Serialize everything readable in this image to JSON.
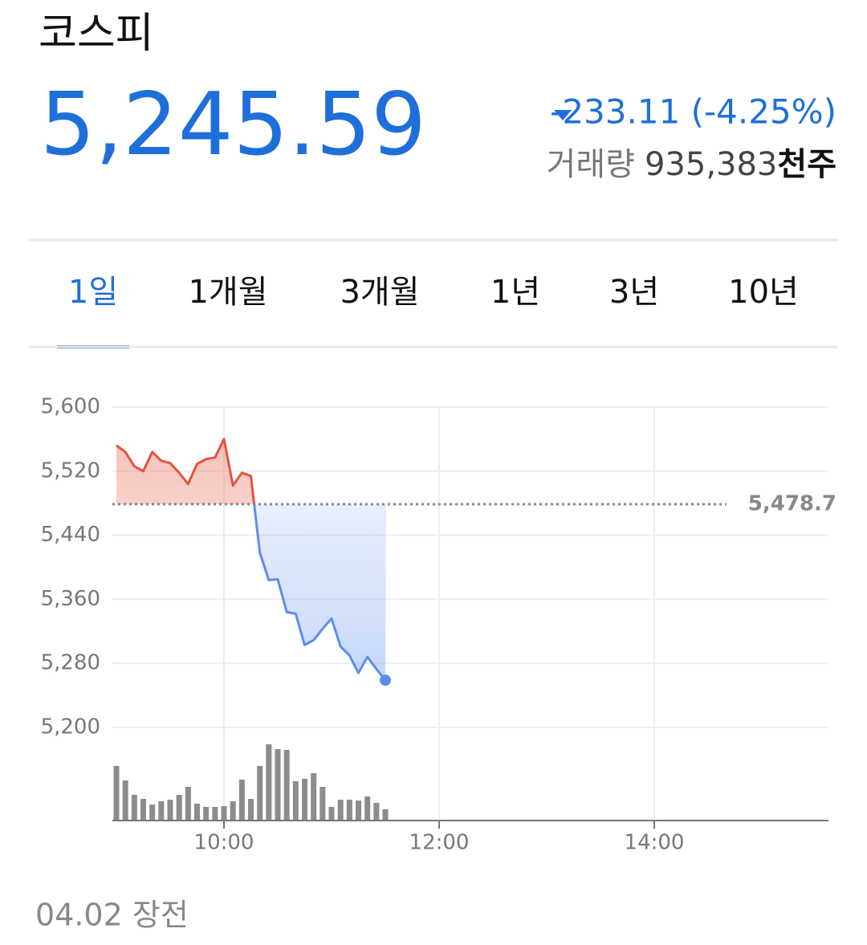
{
  "header": {
    "title": "코스피",
    "price": "5,245.59",
    "change": "-233.11 (-4.25%)",
    "volume_label": "거래량",
    "volume": "935,383",
    "volume_unit": "천주"
  },
  "tabs": {
    "items": [
      "1일",
      "1개월",
      "3개월",
      "1년",
      "3년",
      "10년"
    ],
    "selected": 0
  },
  "chart_data": {
    "type": "line",
    "x": [
      540,
      545,
      550,
      555,
      560,
      565,
      570,
      575,
      580,
      585,
      590,
      595,
      600,
      605,
      610,
      615,
      620,
      625,
      630,
      635,
      640,
      645,
      650,
      655,
      660,
      665,
      670,
      675,
      680,
      685,
      690
    ],
    "values": [
      5552,
      5544,
      5526,
      5520,
      5544,
      5533,
      5530,
      5518,
      5504,
      5529,
      5535,
      5537,
      5560,
      5502,
      5518,
      5514,
      5418,
      5384,
      5385,
      5344,
      5342,
      5303,
      5309,
      5323,
      5336,
      5301,
      5290,
      5268,
      5288,
      5273,
      5259
    ],
    "volume": [
      68,
      50,
      32,
      27,
      20,
      24,
      26,
      32,
      42,
      21,
      17,
      17,
      18,
      24,
      51,
      27,
      68,
      95,
      89,
      88,
      49,
      52,
      59,
      42,
      17,
      26,
      26,
      25,
      30,
      22,
      14
    ],
    "baseline": 5478.7,
    "baseline_label": "5,478.7",
    "up_color": "#e5533d",
    "down_color": "#5b8def",
    "volume_color": "#8c8c8c",
    "xlim": [
      540,
      930
    ],
    "xticks": [
      {
        "value": 600,
        "label": "10:00"
      },
      {
        "value": 720,
        "label": "12:00"
      },
      {
        "value": 840,
        "label": "14:00"
      }
    ],
    "ylim": [
      5200,
      5600
    ],
    "yticks": [
      {
        "value": 5200,
        "label": "5,200"
      },
      {
        "value": 5280,
        "label": "5,280"
      },
      {
        "value": 5360,
        "label": "5,360"
      },
      {
        "value": 5440,
        "label": "5,440"
      },
      {
        "value": 5520,
        "label": "5,520"
      },
      {
        "value": 5600,
        "label": "5,600"
      }
    ],
    "grid": true
  },
  "footer": {
    "date": "04.02 장전"
  }
}
